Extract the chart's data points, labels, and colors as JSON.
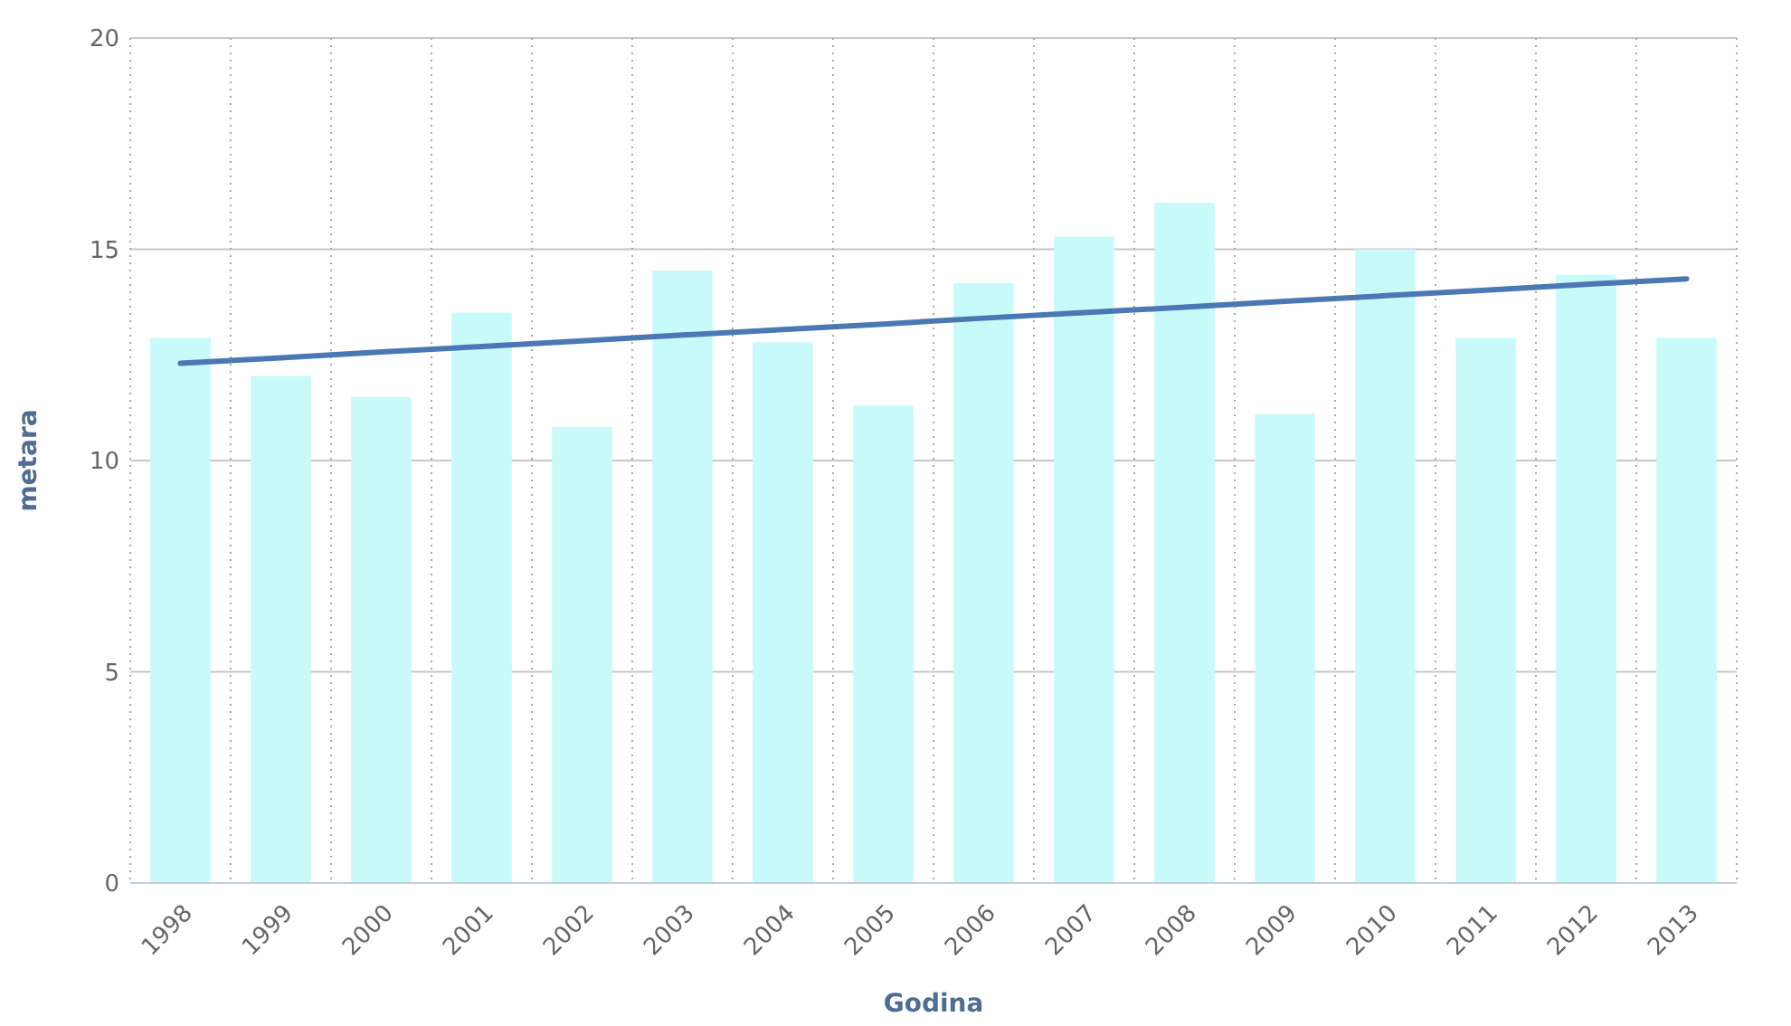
{
  "chart_data": {
    "type": "bar",
    "xlabel": "Godina",
    "ylabel": "metara",
    "categories": [
      "1998",
      "1999",
      "2000",
      "2001",
      "2002",
      "2003",
      "2004",
      "2005",
      "2006",
      "2007",
      "2008",
      "2009",
      "2010",
      "2011",
      "2012",
      "2013"
    ],
    "series": [
      {
        "color": "#c8fafa",
        "values": [
          12.9,
          12.0,
          11.5,
          13.5,
          10.8,
          14.5,
          12.8,
          11.3,
          14.2,
          15.3,
          16.1,
          11.1,
          15.0,
          12.9,
          14.4,
          12.9
        ]
      },
      {
        "type": "line",
        "color": "#4a78b4",
        "values": [
          12.3,
          12.43,
          12.57,
          12.7,
          12.83,
          12.97,
          13.1,
          13.23,
          13.37,
          13.5,
          13.63,
          13.77,
          13.9,
          14.03,
          14.17,
          14.3
        ]
      }
    ],
    "ylim": [
      0,
      20
    ],
    "yticks": [
      0,
      5,
      10,
      15,
      20
    ],
    "grid": true,
    "marker": "none",
    "line_style": "solid"
  }
}
